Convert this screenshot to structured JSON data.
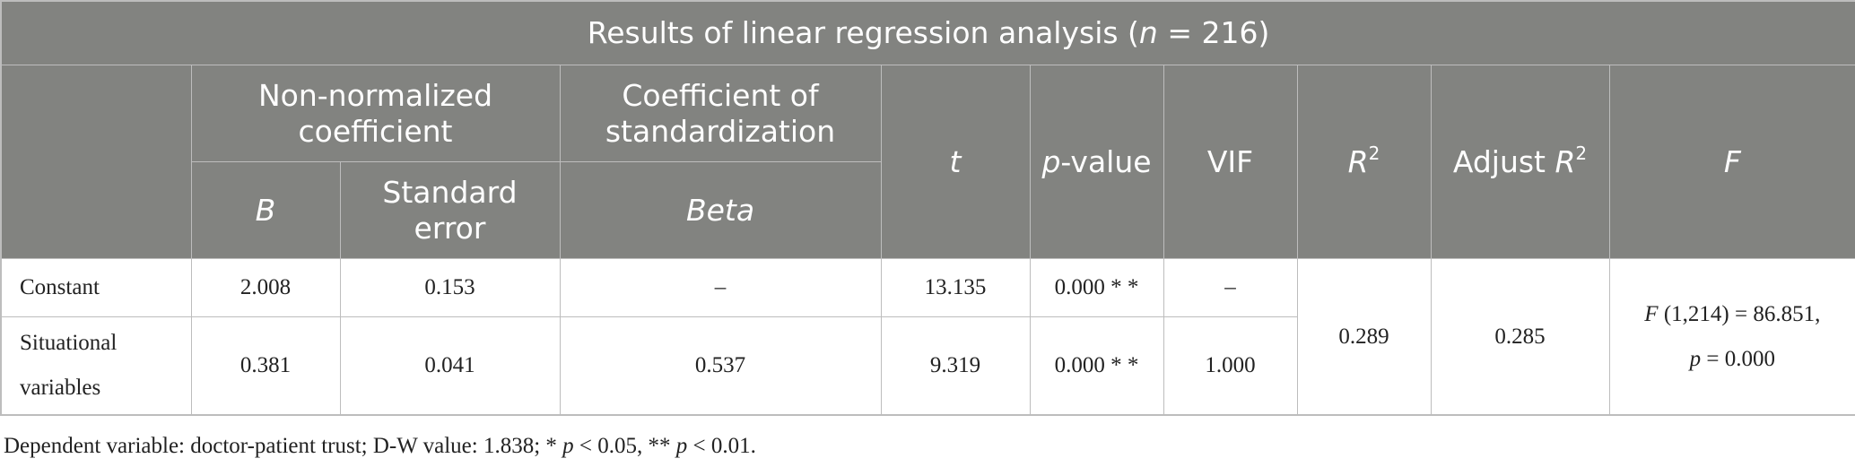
{
  "table": {
    "title_prefix": "Results of linear regression analysis (",
    "title_n": "n",
    "title_suffix": " = 216)",
    "headers": {
      "non_normalized": "Non-normalized coefficient",
      "standardization": "Coefficient of standardization",
      "t": "t",
      "p_value_p": "p",
      "p_value_rest": "-value",
      "vif": "VIF",
      "r2_r": "R",
      "r2_sup": "2",
      "adj_r2_prefix": "Adjust ",
      "adj_r2_r": "R",
      "adj_r2_sup": "2",
      "f": "F",
      "b": "B",
      "standard_error": "Standard error",
      "beta": "Beta"
    },
    "rows": [
      {
        "label": "Constant",
        "b": "2.008",
        "se": "0.153",
        "beta": "–",
        "t": "13.135",
        "p": "0.000 * *",
        "vif": "–"
      },
      {
        "label": "Situational variables",
        "b": "0.381",
        "se": "0.041",
        "beta": "0.537",
        "t": "9.319",
        "p": "0.000 * *",
        "vif": "1.000"
      }
    ],
    "r2": "0.289",
    "adj_r2": "0.285",
    "f_stat": {
      "f": "F",
      "line1_rest": " (1,214) = 86.851,",
      "p": "p",
      "line2_rest": " = 0.000"
    }
  },
  "footnote": {
    "text1": "Dependent variable: doctor-patient trust; D-W value: 1.838; * ",
    "p1": "p",
    "text2": " < 0.05, ** ",
    "p2": "p",
    "text3": " < 0.01."
  }
}
